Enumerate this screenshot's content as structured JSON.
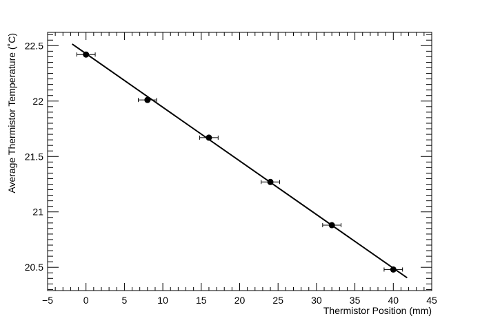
{
  "chart_data": {
    "type": "scatter",
    "title": "",
    "xlabel": "Thermistor Position (mm)",
    "ylabel": "Average Thermistor Temperature (˚C)",
    "xlim": [
      -5,
      45
    ],
    "ylim": [
      20.29,
      22.62
    ],
    "xticks": [
      -5,
      0,
      5,
      10,
      15,
      20,
      25,
      30,
      35,
      40,
      45
    ],
    "xtick_labels": [
      "−5",
      "0",
      "5",
      "10",
      "15",
      "20",
      "25",
      "30",
      "35",
      "40",
      "45"
    ],
    "yticks": [
      20.5,
      21,
      21.5,
      22,
      22.5
    ],
    "ytick_labels": [
      "20.5",
      "21",
      "21.5",
      "22",
      "22.5"
    ],
    "grid": false,
    "series": [
      {
        "x": [
          0,
          8,
          16,
          24,
          32,
          40
        ],
        "y": [
          22.42,
          22.01,
          21.67,
          21.27,
          20.88,
          20.48
        ],
        "x_error": [
          1.2,
          1.2,
          1.2,
          1.2,
          1.2,
          1.2
        ],
        "y_error": [
          0.02,
          0.02,
          0.02,
          0.02,
          0.02,
          0.02
        ],
        "marker_color": "#000000"
      }
    ],
    "fit_line": {
      "x": [
        -1.8,
        41.8
      ],
      "y": [
        22.515,
        20.405
      ],
      "color": "#000000"
    }
  }
}
